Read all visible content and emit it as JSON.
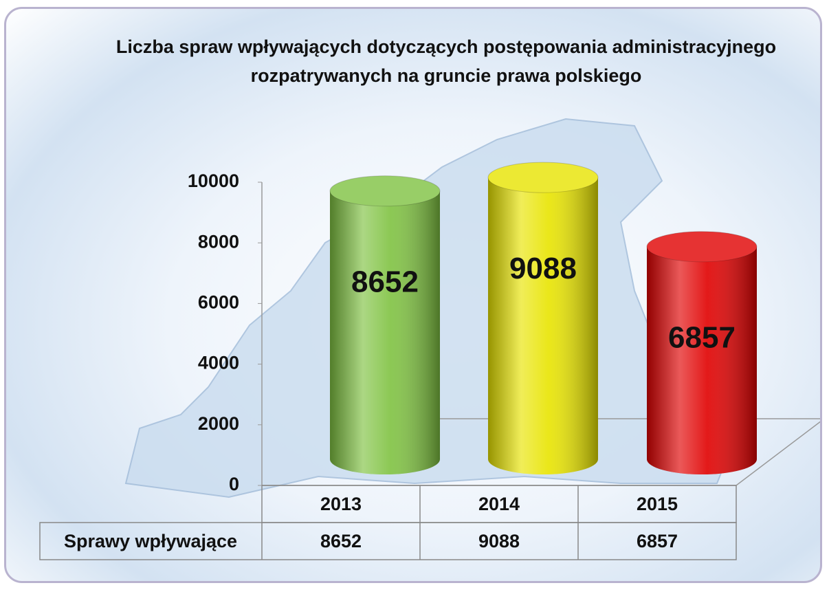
{
  "chart_data": {
    "type": "bar3d",
    "title": "Liczba spraw wpływających dotyczących postępowania administracyjnego rozpatrywanych na gruncie prawa polskiego",
    "categories": [
      "2013",
      "2014",
      "2015"
    ],
    "series": [
      {
        "name": "Sprawy wpływające",
        "values": [
          8652,
          9088,
          6857
        ],
        "colors": [
          "#7fc241",
          "#e8e400",
          "#e00000"
        ]
      }
    ],
    "ylim": [
      0,
      10000
    ],
    "yticks": [
      0,
      2000,
      4000,
      6000,
      8000,
      10000
    ]
  }
}
